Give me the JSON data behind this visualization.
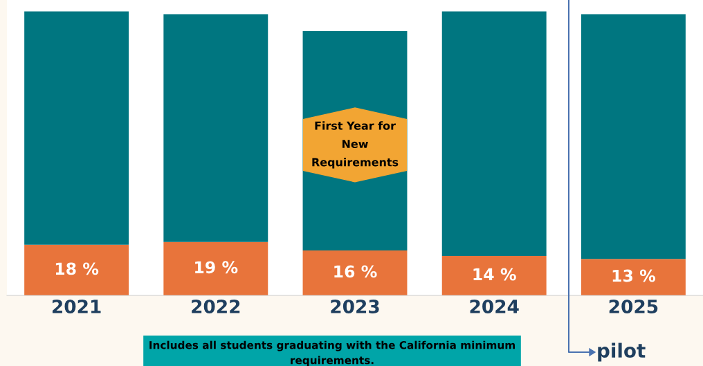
{
  "chart_data": {
    "type": "bar",
    "stacked": true,
    "categories": [
      "2021",
      "2022",
      "2023",
      "2024",
      "2025"
    ],
    "series": [
      {
        "color": "#e8743b",
        "values": [
          18,
          19,
          16,
          14,
          13
        ],
        "value_labels": [
          "18 %",
          "19 %",
          "16 %",
          "14 %",
          "13 %"
        ]
      },
      {
        "color": "#007680",
        "values": [
          83,
          81,
          78,
          87,
          87
        ]
      }
    ],
    "annotations": [
      "First Year for New Requirements",
      "Includes all students graduating with the California minimum requirements.",
      "pilot"
    ]
  }
}
